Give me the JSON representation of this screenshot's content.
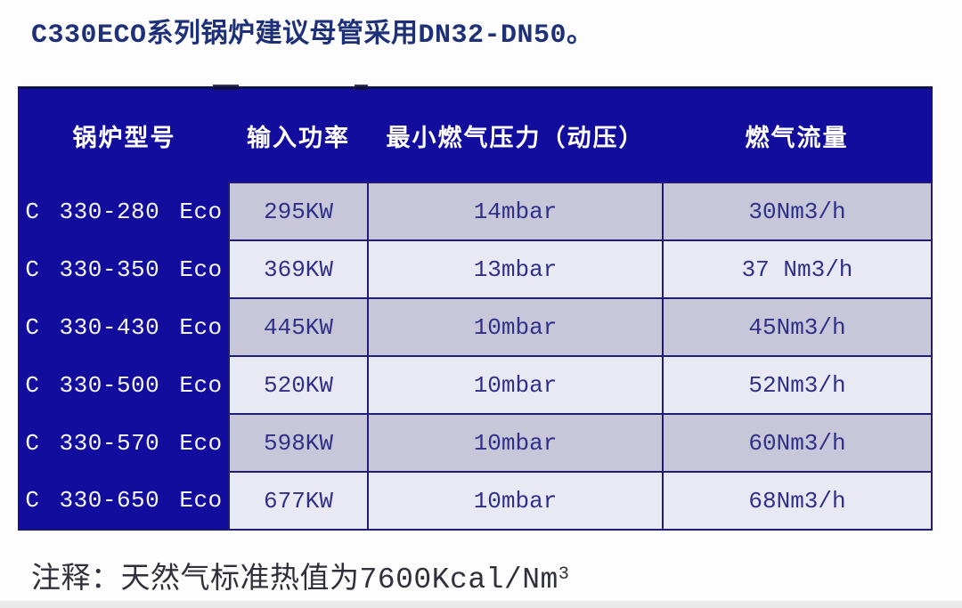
{
  "page": {
    "title": "C330ECO系列锅炉建议母管采用DN32-DN50。",
    "footnote_prefix": "注释：天然气标准热值为7600Kcal/Nm",
    "footnote_superscript": "3"
  },
  "table": {
    "columns": [
      "锅炉型号",
      "输入功率",
      "最小燃气压力（动压）",
      "燃气流量"
    ],
    "rows": [
      {
        "model": "C 330-280 Eco",
        "power": "295KW",
        "pressure": "14mbar",
        "flow": "30Nm3/h"
      },
      {
        "model": "C 330-350 Eco",
        "power": "369KW",
        "pressure": "13mbar",
        "flow": "37 Nm3/h"
      },
      {
        "model": "C 330-430 Eco",
        "power": "445KW",
        "pressure": "10mbar",
        "flow": "45Nm3/h"
      },
      {
        "model": "C 330-500 Eco",
        "power": "520KW",
        "pressure": "10mbar",
        "flow": "52Nm3/h"
      },
      {
        "model": "C 330-570 Eco",
        "power": "598KW",
        "pressure": "10mbar",
        "flow": "60Nm3/h"
      },
      {
        "model": "C 330-650 Eco",
        "power": "677KW",
        "pressure": "10mbar",
        "flow": "68Nm3/h"
      }
    ]
  },
  "colors": {
    "header_blue": "#120d9c",
    "row_odd_bg": "#c7c7d9",
    "row_even_bg": "#e9e9f3",
    "border_navy": "#201c78",
    "title_text": "#1e3178",
    "cell_text": "#30308a",
    "note_text": "#31313b"
  }
}
